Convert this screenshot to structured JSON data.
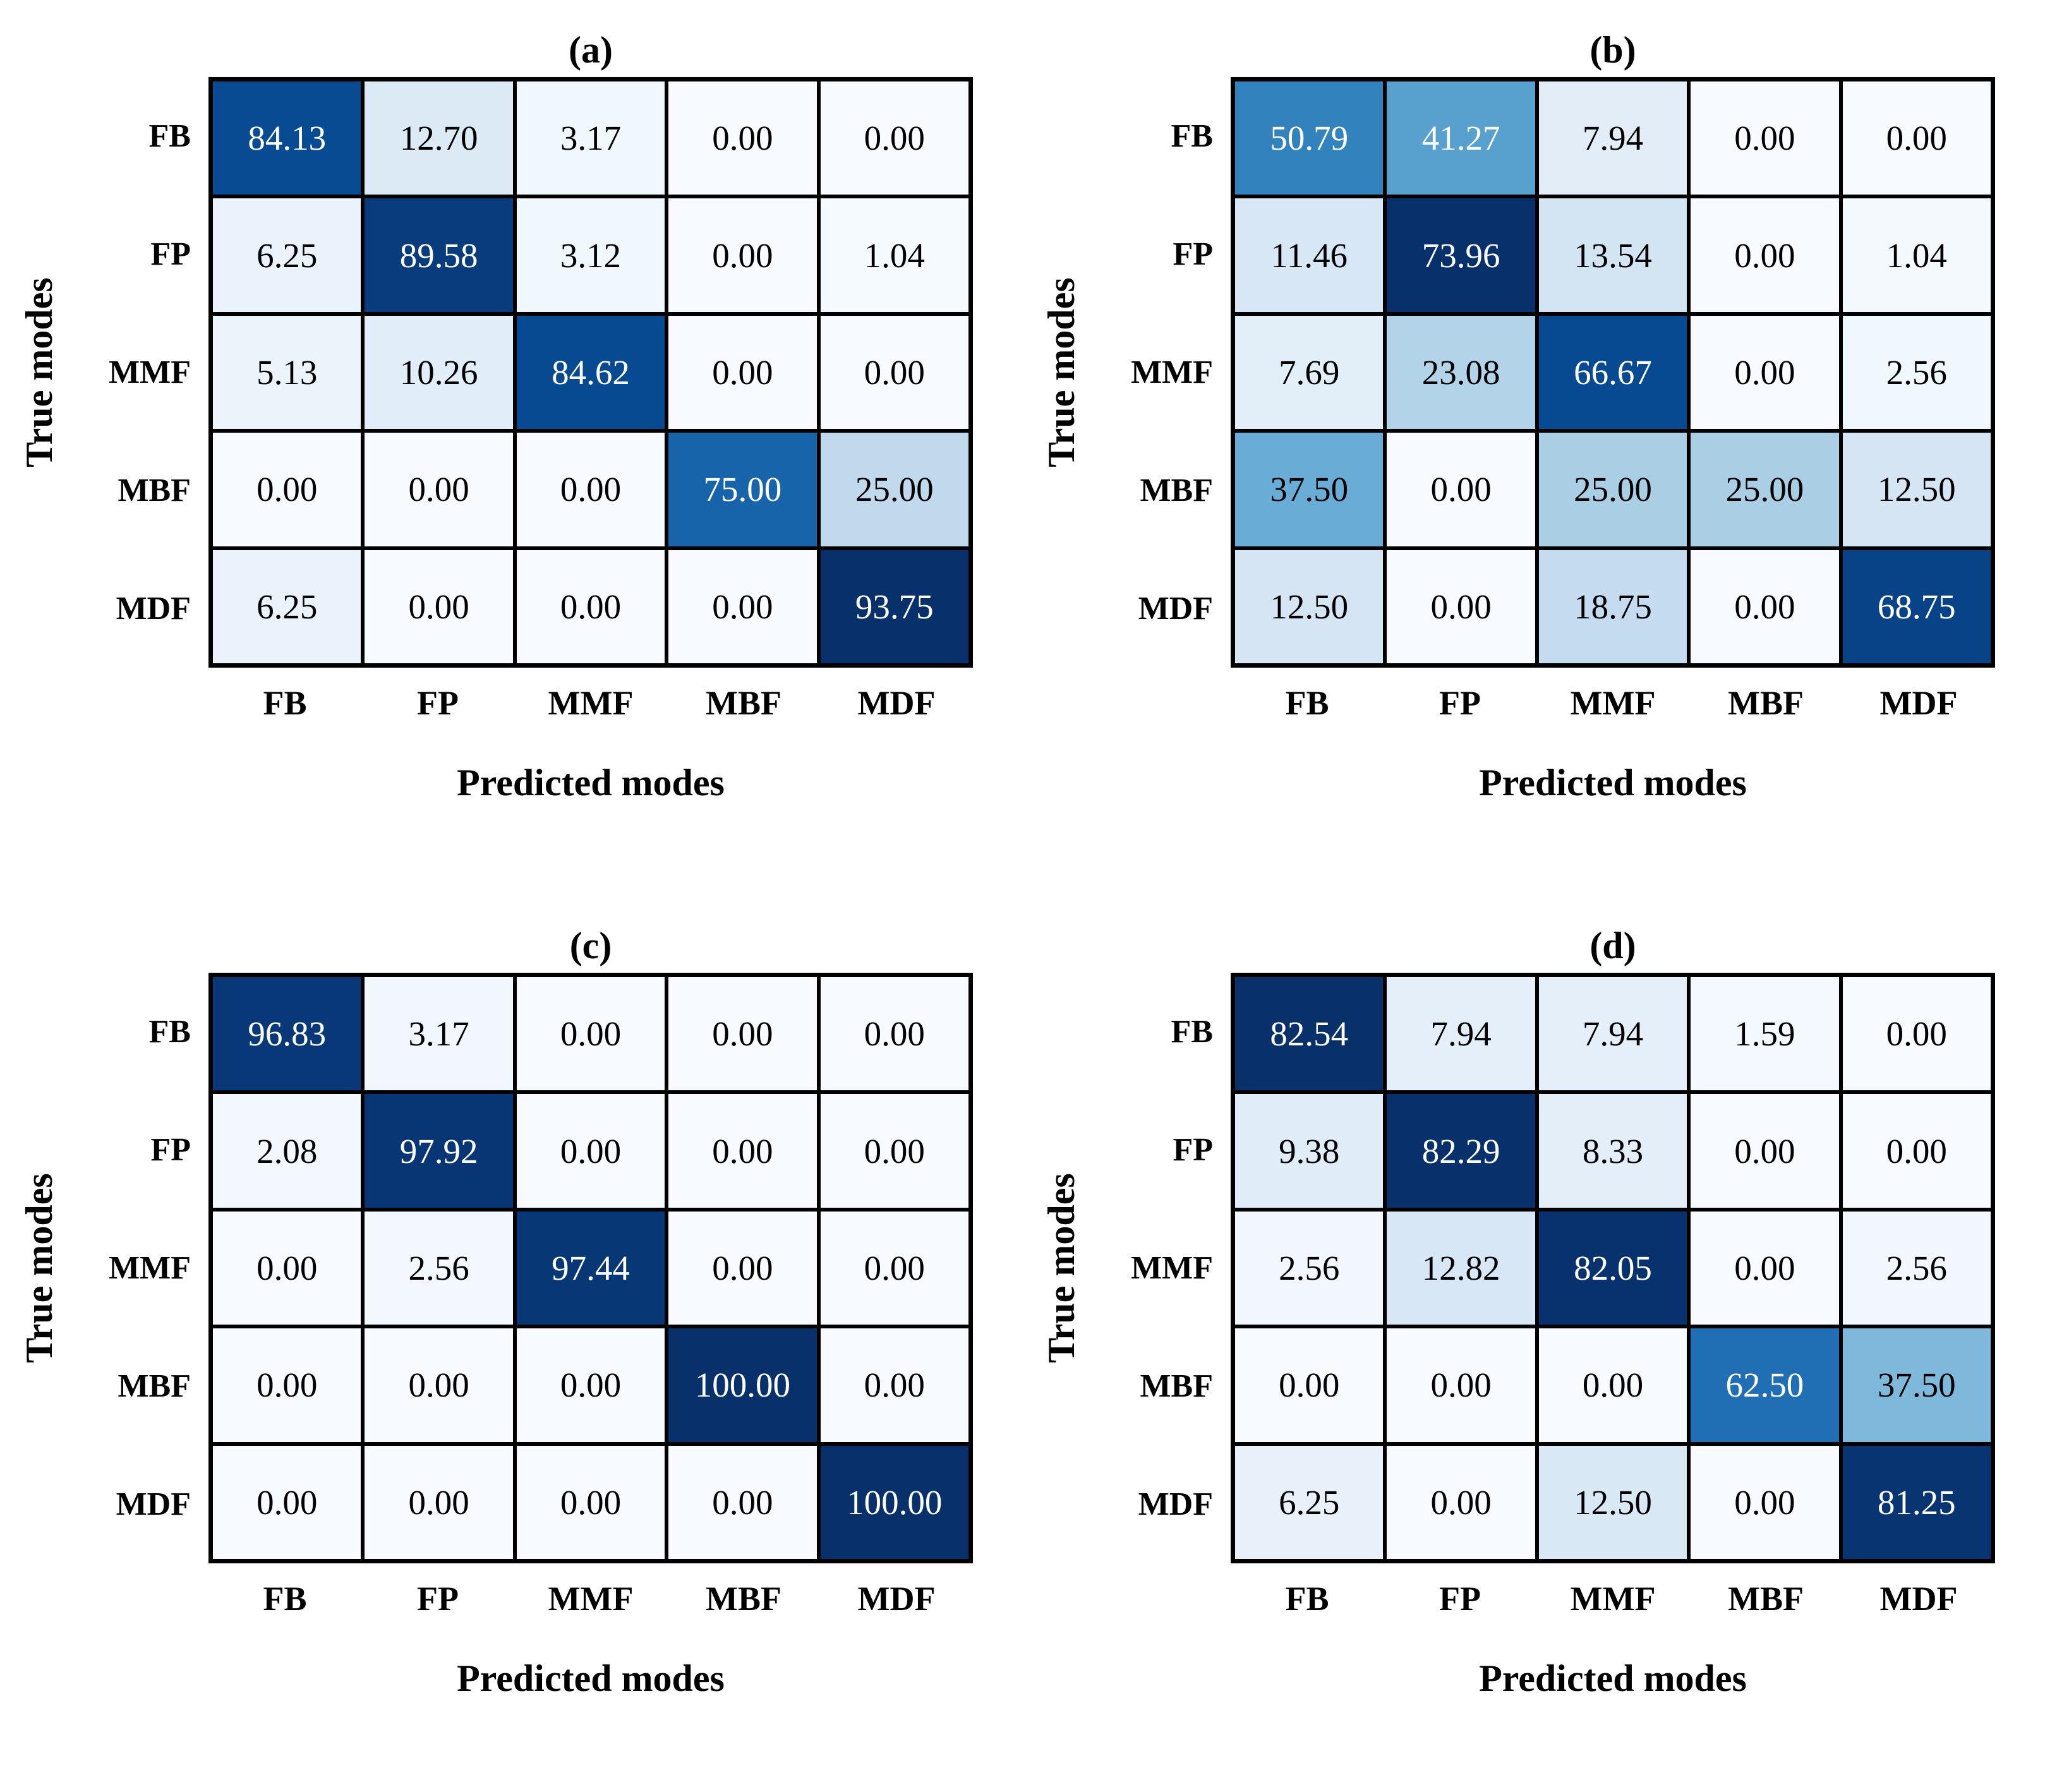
{
  "figure": {
    "classes": [
      "FB",
      "FP",
      "MMF",
      "MBF",
      "MDF"
    ],
    "ylabel": "True modes",
    "xlabel": "Predicted modes",
    "colors": {
      "cmap_name": "Blues",
      "cmap_low": "#f7fbff",
      "cmap_high": "#08306b",
      "grid_line": "#000000",
      "text_dark": "#000000",
      "text_light": "#ffffff",
      "background": "#ffffff"
    },
    "text_color_rule": "white if value >= 40 else black"
  },
  "chart_data": [
    {
      "type": "heatmap",
      "title": "(a)",
      "xlabel": "Predicted modes",
      "ylabel": "True modes",
      "x_categories": [
        "FB",
        "FP",
        "MMF",
        "MBF",
        "MDF"
      ],
      "y_categories": [
        "FB",
        "FP",
        "MMF",
        "MBF",
        "MDF"
      ],
      "values": [
        [
          84.13,
          12.7,
          3.17,
          0.0,
          0.0
        ],
        [
          6.25,
          89.58,
          3.12,
          0.0,
          1.04
        ],
        [
          5.13,
          10.26,
          84.62,
          0.0,
          0.0
        ],
        [
          0.0,
          0.0,
          0.0,
          75.0,
          25.0
        ],
        [
          6.25,
          0.0,
          0.0,
          0.0,
          93.75
        ]
      ],
      "value_format": "2 decimals (percent)",
      "colormap": "Blues",
      "vmin": 0,
      "vmax": 93.75
    },
    {
      "type": "heatmap",
      "title": "(b)",
      "xlabel": "Predicted modes",
      "ylabel": "True modes",
      "x_categories": [
        "FB",
        "FP",
        "MMF",
        "MBF",
        "MDF"
      ],
      "y_categories": [
        "FB",
        "FP",
        "MMF",
        "MBF",
        "MDF"
      ],
      "values": [
        [
          50.79,
          41.27,
          7.94,
          0.0,
          0.0
        ],
        [
          11.46,
          73.96,
          13.54,
          0.0,
          1.04
        ],
        [
          7.69,
          23.08,
          66.67,
          0.0,
          2.56
        ],
        [
          37.5,
          0.0,
          25.0,
          25.0,
          12.5
        ],
        [
          12.5,
          0.0,
          18.75,
          0.0,
          68.75
        ]
      ],
      "value_format": "2 decimals (percent)",
      "colormap": "Blues",
      "vmin": 0,
      "vmax": 73.96
    },
    {
      "type": "heatmap",
      "title": "(c)",
      "xlabel": "Predicted modes",
      "ylabel": "True modes",
      "x_categories": [
        "FB",
        "FP",
        "MMF",
        "MBF",
        "MDF"
      ],
      "y_categories": [
        "FB",
        "FP",
        "MMF",
        "MBF",
        "MDF"
      ],
      "values": [
        [
          96.83,
          3.17,
          0.0,
          0.0,
          0.0
        ],
        [
          2.08,
          97.92,
          0.0,
          0.0,
          0.0
        ],
        [
          0.0,
          2.56,
          97.44,
          0.0,
          0.0
        ],
        [
          0.0,
          0.0,
          0.0,
          100.0,
          0.0
        ],
        [
          0.0,
          0.0,
          0.0,
          0.0,
          100.0
        ]
      ],
      "value_format": "2 decimals (percent)",
      "colormap": "Blues",
      "vmin": 0,
      "vmax": 100.0
    },
    {
      "type": "heatmap",
      "title": "(d)",
      "xlabel": "Predicted modes",
      "ylabel": "True modes",
      "x_categories": [
        "FB",
        "FP",
        "MMF",
        "MBF",
        "MDF"
      ],
      "y_categories": [
        "FB",
        "FP",
        "MMF",
        "MBF",
        "MDF"
      ],
      "values": [
        [
          82.54,
          7.94,
          7.94,
          1.59,
          0.0
        ],
        [
          9.38,
          82.29,
          8.33,
          0.0,
          0.0
        ],
        [
          2.56,
          12.82,
          82.05,
          0.0,
          2.56
        ],
        [
          0.0,
          0.0,
          0.0,
          62.5,
          37.5
        ],
        [
          6.25,
          0.0,
          12.5,
          0.0,
          81.25
        ]
      ],
      "value_format": "2 decimals (percent)",
      "colormap": "Blues",
      "vmin": 0,
      "vmax": 82.54
    }
  ]
}
